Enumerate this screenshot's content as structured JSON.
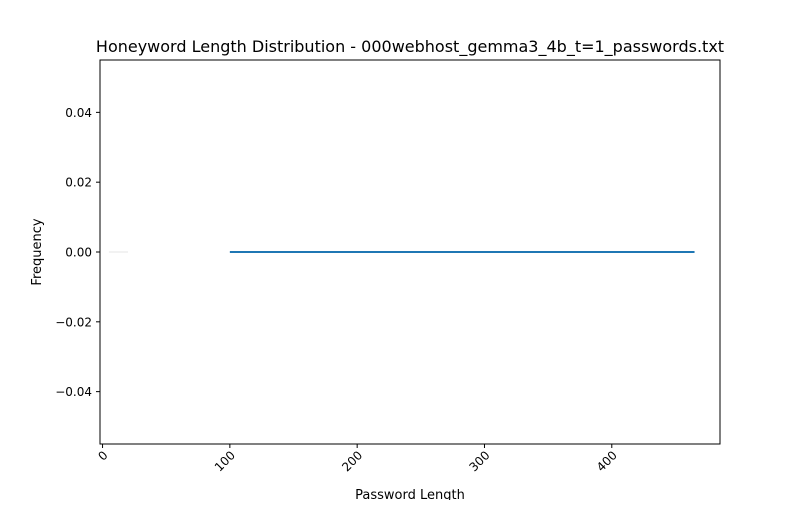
{
  "chart_data": {
    "type": "line",
    "title": "Honeyword Length Distribution - 000webhost_gemma3_4b_t=1_passwords.txt",
    "xlabel": "Password Length",
    "ylabel": "Frequency",
    "xlim": [
      -2,
      485
    ],
    "ylim": [
      -0.055,
      0.055
    ],
    "xticks": [
      0,
      100,
      200,
      300,
      400
    ],
    "xtick_labels": [
      "0",
      "100",
      "200",
      "300",
      "400"
    ],
    "yticks": [
      -0.04,
      -0.02,
      0.0,
      0.02,
      0.04
    ],
    "ytick_labels": [
      "−0.04",
      "−0.02",
      "0.00",
      "0.02",
      "0.04"
    ],
    "xtick_rotation": 45,
    "grid": false,
    "legend": "none",
    "series": [
      {
        "color": "#1f77b4",
        "x": [
          100,
          465
        ],
        "y": [
          0,
          0
        ]
      }
    ],
    "bars": [
      {
        "color": "#f2f2f2",
        "x": [
          5,
          20
        ],
        "y": [
          0,
          0
        ]
      }
    ]
  }
}
